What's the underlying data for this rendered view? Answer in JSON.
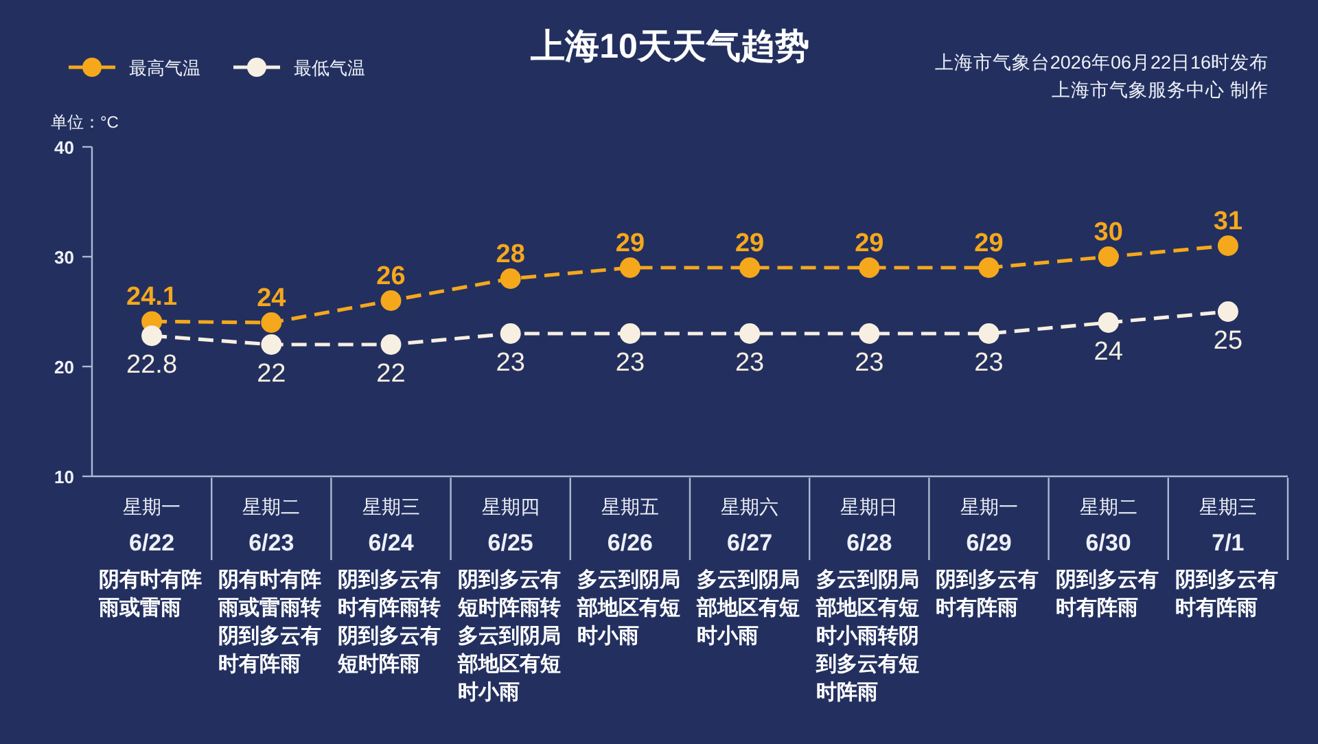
{
  "chart_data": {
    "type": "line",
    "title": "上海10天天气趋势",
    "ylabel": "单位：°C",
    "categories": [
      "星期一\n6/22\n阴有时有阵雨或雷雨",
      "星期二\n6/23\n阴有时有阵雨或雷雨转阴到多云有时有阵雨",
      "星期三\n6/24\n阴到多云有时有阵雨转阴到多云有短时阵雨",
      "星期四\n6/25\n阴到多云有短时阵雨转多云到阴局部地区有短时小雨",
      "星期五\n6/26\n多云到阴局部地区有短时小雨",
      "星期六\n6/27\n多云到阴局部地区有短时小雨",
      "星期日\n6/28\n多云到阴局部地区有短时小雨转阴到多云有短时阵雨",
      "星期一\n6/29\n阴到多云有时有阵雨",
      "星期二\n6/30\n阴到多云有时有阵雨",
      "星期三\n7/1\n阴到多云有时有阵雨"
    ],
    "series": [
      {
        "name": "最高气温",
        "color": "#f5a81c",
        "values": [
          24.1,
          24,
          26,
          28,
          29,
          29,
          29,
          29,
          30,
          31
        ]
      },
      {
        "name": "最低气温",
        "color": "#f7efe2",
        "values": [
          22.8,
          22,
          22,
          23,
          23,
          23,
          23,
          23,
          24,
          25
        ]
      }
    ],
    "ylim": [
      10,
      40
    ],
    "yticks": [
      10,
      20,
      30,
      40
    ],
    "grid": false,
    "legend": "top left",
    "marker": "circle",
    "line_style": "dashed",
    "data_labels": true,
    "annotations": [
      "上海市气象台2026年06月22日16时发布",
      "上海市气象服务中心  制作"
    ]
  }
}
